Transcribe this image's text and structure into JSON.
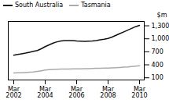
{
  "chart_data": {
    "type": "line",
    "categories": [
      "Mar\n2002",
      null,
      null,
      null,
      null,
      null,
      null,
      null,
      "Mar\n2004",
      null,
      null,
      null,
      null,
      null,
      null,
      null,
      "Mar\n2006",
      null,
      null,
      null,
      null,
      null,
      null,
      null,
      "Mar\n2008",
      null,
      null,
      null,
      null,
      null,
      null,
      null,
      "Mar\n2010"
    ],
    "series": [
      {
        "name": "South Australia",
        "color": "#111111",
        "values": [
          620,
          640,
          655,
          670,
          690,
          710,
          730,
          770,
          820,
          860,
          900,
          930,
          950,
          960,
          960,
          960,
          950,
          945,
          940,
          945,
          950,
          960,
          975,
          990,
          1010,
          1040,
          1080,
          1120,
          1160,
          1200,
          1240,
          1280,
          1310
        ]
      },
      {
        "name": "Tasmania",
        "color": "#aaaaaa",
        "values": [
          210,
          215,
          218,
          222,
          228,
          235,
          248,
          262,
          278,
          290,
          295,
          298,
          300,
          302,
          303,
          305,
          307,
          308,
          310,
          312,
          315,
          318,
          320,
          323,
          326,
          330,
          335,
          340,
          345,
          350,
          360,
          370,
          380
        ]
      }
    ],
    "ylabel": "$m",
    "ylim": [
      50,
      1400
    ],
    "yticks": [
      100,
      400,
      700,
      1000,
      1300
    ],
    "legend": "upper left",
    "grid": false
  }
}
